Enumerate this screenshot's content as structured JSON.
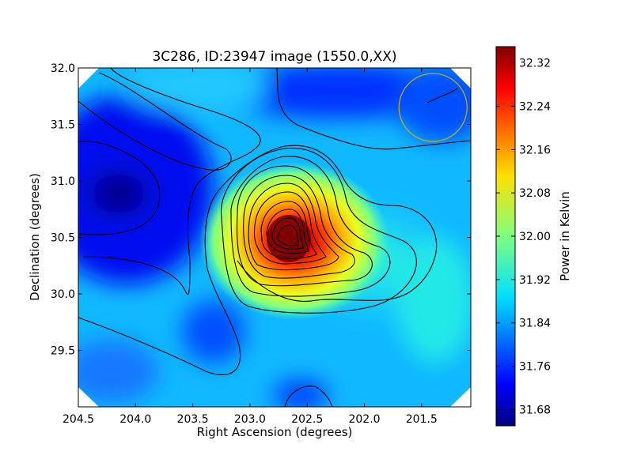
{
  "chart_data": {
    "type": "heatmap",
    "title": "3C286, ID:23947 image (1550.0,XX)",
    "xlabel": "Right Ascension (degrees)",
    "ylabel": "Declination (degrees)",
    "colorbar_label": "Power in Kelvin",
    "colormap": "jet",
    "xlim": [
      204.5,
      201.07
    ],
    "ylim": [
      29.0,
      32.0
    ],
    "xticks": [
      "204.5",
      "204.0",
      "203.5",
      "203.0",
      "202.5",
      "202.0",
      "201.5"
    ],
    "yticks": [
      "32.0",
      "31.5",
      "31.0",
      "30.5",
      "30.0",
      "29.5"
    ],
    "colorbar_range": [
      31.65,
      32.35
    ],
    "colorbar_ticks": [
      "32.32",
      "32.24",
      "32.16",
      "32.08",
      "32.00",
      "31.92",
      "31.84",
      "31.76",
      "31.68"
    ],
    "peak": {
      "ra": 202.63,
      "dec": 30.48,
      "value": 32.32
    },
    "minimum": {
      "ra": 204.1,
      "dec": 30.85,
      "value": 31.66
    },
    "beam_circle": {
      "ra": 201.4,
      "dec": 31.65,
      "radius_deg": 0.3,
      "color": "#c8b400"
    }
  }
}
